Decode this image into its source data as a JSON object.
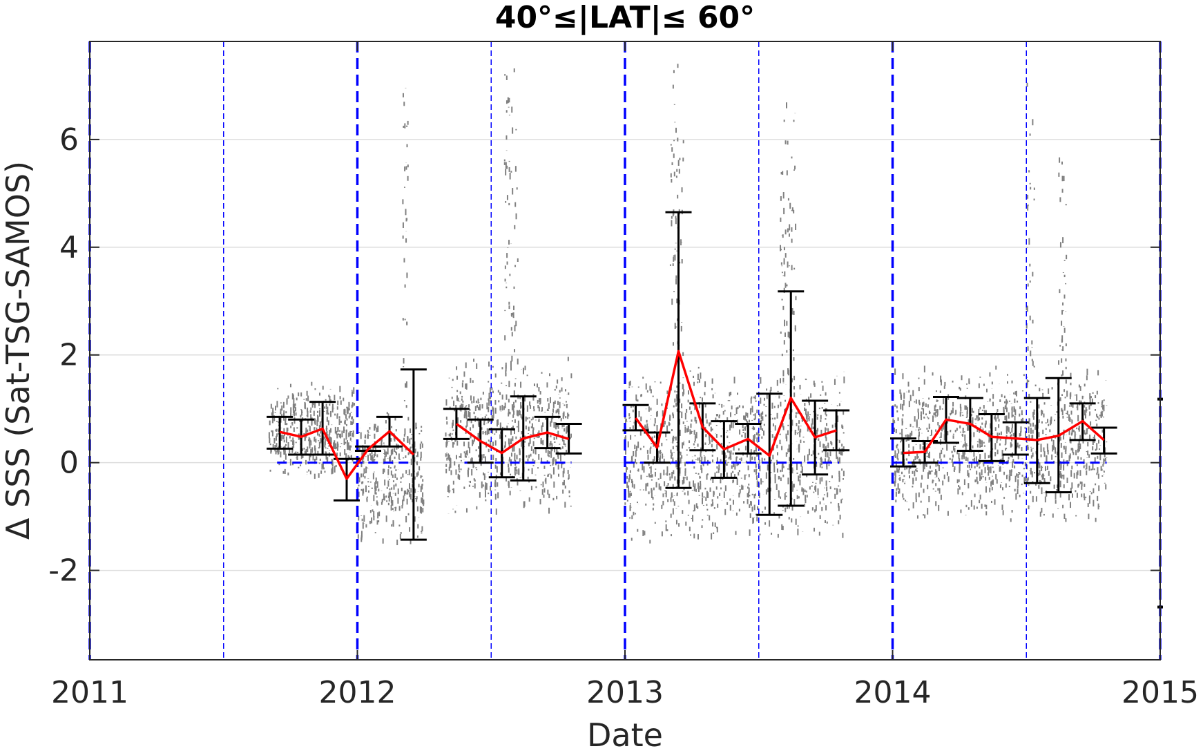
{
  "chart_data": {
    "type": "scatter",
    "title": "40°≤|LAT|≤ 60°",
    "xlabel": "Date",
    "ylabel": "Δ SSS (Sat-TSG-SAMOS)",
    "xlim": [
      2011.0,
      2015.0
    ],
    "ylim": [
      -3.66,
      7.82
    ],
    "x_ticks": [
      2011,
      2012,
      2013,
      2014,
      2015
    ],
    "x_tick_labels": [
      "2011",
      "2012",
      "2013",
      "2014",
      "2015"
    ],
    "y_ticks": [
      -2,
      0,
      2,
      4,
      6
    ],
    "y_tick_labels": [
      "-2",
      "0",
      "2",
      "4",
      "6"
    ],
    "grid": true,
    "colors": {
      "scatter": "#808080",
      "mean_line": "#ff0000",
      "error_bars": "#000000",
      "reference_lines": "#0000ff",
      "grid": "#dddddd",
      "axes": "#262626"
    },
    "year_boundaries": [
      2011.0,
      2012.0,
      2013.0,
      2014.0,
      2015.0
    ],
    "half_year_lines": [
      2011.5,
      2012.5,
      2013.5,
      2014.5
    ],
    "zero_reference_segments": [
      [
        2011.7,
        2012.2
      ],
      [
        2012.4,
        2012.8
      ],
      [
        2013.0,
        2013.8
      ],
      [
        2014.0,
        2014.8
      ]
    ],
    "monthly_stats": [
      {
        "x": 2011.71,
        "mean": 0.57,
        "upper": 0.85,
        "lower": 0.26
      },
      {
        "x": 2011.79,
        "mean": 0.48,
        "upper": 0.8,
        "lower": 0.15
      },
      {
        "x": 2011.87,
        "mean": 0.63,
        "upper": 1.13,
        "lower": 0.15
      },
      {
        "x": 2011.96,
        "mean": -0.3,
        "upper": 0.07,
        "lower": -0.7
      },
      {
        "x": 2012.04,
        "mean": 0.25,
        "upper": 0.3,
        "lower": 0.22
      },
      {
        "x": 2012.12,
        "mean": 0.58,
        "upper": 0.85,
        "lower": 0.3
      },
      {
        "x": 2012.21,
        "mean": 0.15,
        "upper": 1.73,
        "lower": -1.43
      },
      {
        "x": 2012.37,
        "mean": 0.72,
        "upper": 1.0,
        "lower": 0.44
      },
      {
        "x": 2012.46,
        "mean": 0.4,
        "upper": 0.8,
        "lower": 0.0
      },
      {
        "x": 2012.54,
        "mean": 0.18,
        "upper": 0.62,
        "lower": -0.27
      },
      {
        "x": 2012.62,
        "mean": 0.45,
        "upper": 1.23,
        "lower": -0.33
      },
      {
        "x": 2012.71,
        "mean": 0.56,
        "upper": 0.85,
        "lower": 0.27
      },
      {
        "x": 2012.79,
        "mean": 0.44,
        "upper": 0.72,
        "lower": 0.17
      },
      {
        "x": 2013.04,
        "mean": 0.83,
        "upper": 1.07,
        "lower": 0.6
      },
      {
        "x": 2013.12,
        "mean": 0.28,
        "upper": 0.56,
        "lower": 0.0
      },
      {
        "x": 2013.2,
        "mean": 2.07,
        "upper": 4.65,
        "lower": -0.47
      },
      {
        "x": 2013.29,
        "mean": 0.66,
        "upper": 1.1,
        "lower": 0.23
      },
      {
        "x": 2013.37,
        "mean": 0.25,
        "upper": 0.77,
        "lower": -0.28
      },
      {
        "x": 2013.46,
        "mean": 0.44,
        "upper": 0.72,
        "lower": 0.17
      },
      {
        "x": 2013.54,
        "mean": 0.13,
        "upper": 1.28,
        "lower": -0.97
      },
      {
        "x": 2013.62,
        "mean": 1.2,
        "upper": 3.18,
        "lower": -0.8
      },
      {
        "x": 2013.71,
        "mean": 0.47,
        "upper": 1.15,
        "lower": -0.22
      },
      {
        "x": 2013.79,
        "mean": 0.6,
        "upper": 0.97,
        "lower": 0.23
      },
      {
        "x": 2014.04,
        "mean": 0.18,
        "upper": 0.45,
        "lower": -0.07
      },
      {
        "x": 2014.12,
        "mean": 0.2,
        "upper": 0.4,
        "lower": 0.0
      },
      {
        "x": 2014.2,
        "mean": 0.8,
        "upper": 1.22,
        "lower": 0.37
      },
      {
        "x": 2014.29,
        "mean": 0.72,
        "upper": 1.2,
        "lower": 0.22
      },
      {
        "x": 2014.37,
        "mean": 0.48,
        "upper": 0.9,
        "lower": 0.03
      },
      {
        "x": 2014.46,
        "mean": 0.45,
        "upper": 0.75,
        "lower": 0.15
      },
      {
        "x": 2014.54,
        "mean": 0.42,
        "upper": 1.2,
        "lower": -0.38
      },
      {
        "x": 2014.62,
        "mean": 0.5,
        "upper": 1.57,
        "lower": -0.55
      },
      {
        "x": 2014.71,
        "mean": 0.77,
        "upper": 1.1,
        "lower": 0.42
      },
      {
        "x": 2014.79,
        "mean": 0.42,
        "upper": 0.65,
        "lower": 0.17
      }
    ],
    "scatter_clusters": [
      {
        "x_start": 2011.67,
        "x_end": 2011.99,
        "low": -0.3,
        "high": 1.5
      },
      {
        "x_start": 2012.0,
        "x_end": 2012.25,
        "low": -1.6,
        "high": 1.0
      },
      {
        "x_start": 2012.17,
        "x_end": 2012.19,
        "low": -0.5,
        "high": 7.8
      },
      {
        "x_start": 2012.33,
        "x_end": 2012.8,
        "low": -1.0,
        "high": 2.0
      },
      {
        "x_start": 2012.55,
        "x_end": 2012.6,
        "low": -0.5,
        "high": 7.8
      },
      {
        "x_start": 2013.0,
        "x_end": 2013.82,
        "low": -1.5,
        "high": 1.8
      },
      {
        "x_start": 2013.17,
        "x_end": 2013.22,
        "low": 0.5,
        "high": 7.8
      },
      {
        "x_start": 2013.58,
        "x_end": 2013.64,
        "low": -1.5,
        "high": 7.8
      },
      {
        "x_start": 2014.0,
        "x_end": 2014.8,
        "low": -1.1,
        "high": 1.8
      },
      {
        "x_start": 2014.5,
        "x_end": 2014.53,
        "low": 0.0,
        "high": 7.8
      },
      {
        "x_start": 2014.62,
        "x_end": 2014.65,
        "low": 0.0,
        "high": 6.4
      }
    ],
    "edge_marks": [
      {
        "x": 2015.0,
        "y": 1.18
      },
      {
        "x": 2015.0,
        "y": -2.68
      }
    ]
  }
}
